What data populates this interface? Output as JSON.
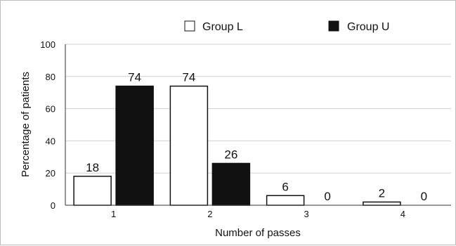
{
  "chart_data": {
    "type": "bar",
    "categories": [
      "1",
      "2",
      "3",
      "4"
    ],
    "series": [
      {
        "name": "Group L",
        "values": [
          18,
          74,
          6,
          2
        ],
        "color": "#ffffff"
      },
      {
        "name": "Group U",
        "values": [
          74,
          26,
          0,
          0
        ],
        "color": "#111111"
      }
    ],
    "data_labels": [
      [
        "18",
        "74",
        "6",
        "2"
      ],
      [
        "74",
        "26",
        "0",
        "0"
      ]
    ],
    "xlabel": "Number of passes",
    "ylabel": "Percentage of patients",
    "ylim": [
      0,
      100
    ],
    "yticks": [
      "0",
      "20",
      "40",
      "60",
      "80",
      "100"
    ],
    "grid": true,
    "legend_position": "top-right"
  }
}
